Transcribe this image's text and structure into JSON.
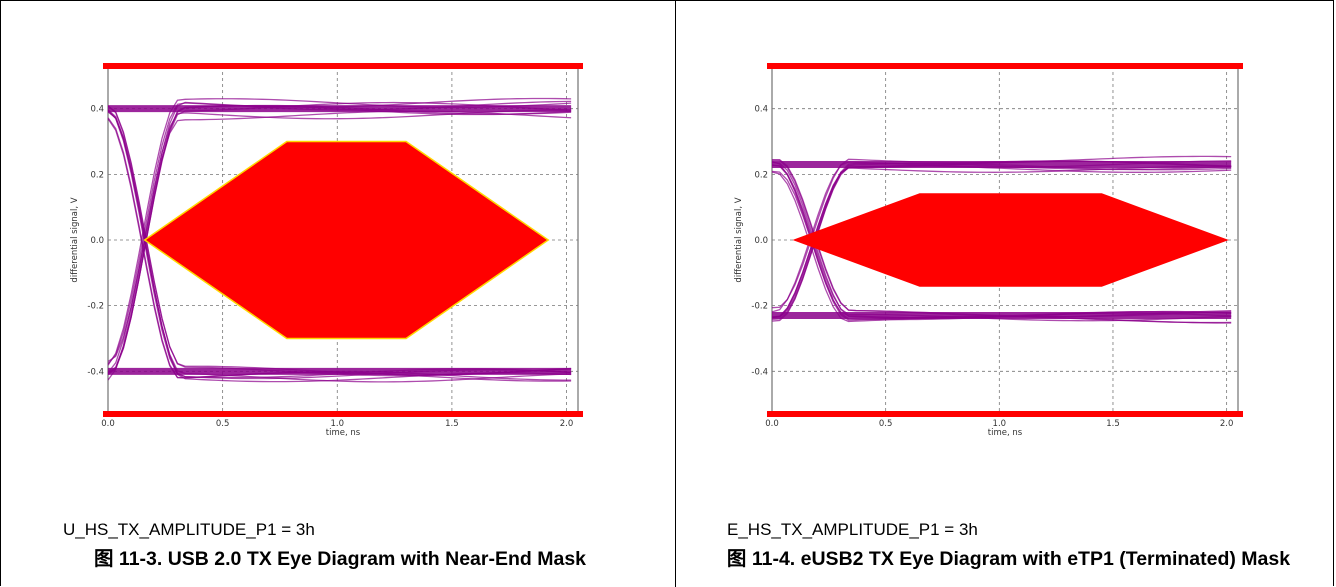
{
  "figures": [
    {
      "setting": "U_HS_TX_AMPLITUDE_P1 = 3h",
      "caption_prefix": "图",
      "caption": "11-3. USB 2.0 TX Eye Diagram with Near-End Mask"
    },
    {
      "setting": "E_HS_TX_AMPLITUDE_P1 = 3h",
      "caption_prefix": "图",
      "caption": "11-4. eUSB2 TX Eye Diagram with eTP1 (Terminated) Mask"
    }
  ],
  "chart_data": [
    {
      "type": "line",
      "title": "",
      "xlabel": "time, ns",
      "ylabel": "differential signal, V",
      "xlim": [
        0.0,
        2.05
      ],
      "ylim": [
        -0.53,
        0.53
      ],
      "xticks": [
        "0.0",
        "0.5",
        "1.0",
        "1.5",
        "2.0"
      ],
      "xtick_values": [
        0.0,
        0.5,
        1.0,
        1.5,
        2.0
      ],
      "yticks": [
        "0.4",
        "0.2",
        "0.0",
        "-0.2",
        "-0.4"
      ],
      "ytick_values": [
        0.4,
        0.2,
        0.0,
        -0.2,
        -0.4
      ],
      "grid": true,
      "colors": {
        "trace": "#8b008b",
        "mask": "#ff0000",
        "mask_edge": "#ffd700"
      },
      "mask": {
        "points": [
          [
            0.16,
            0.0
          ],
          [
            0.78,
            0.3
          ],
          [
            1.3,
            0.3
          ],
          [
            1.92,
            0.0
          ],
          [
            1.3,
            -0.3
          ],
          [
            0.78,
            -0.3
          ]
        ],
        "upper_limit": 0.53,
        "lower_limit": -0.53
      },
      "eye": {
        "amplitude": 0.4,
        "bit_period": 2.0,
        "first_crossing": 0.0,
        "second_crossing": 2.0,
        "thickness": 0.022
      }
    },
    {
      "type": "line",
      "title": "",
      "xlabel": "time, ns",
      "ylabel": "differential signal, V",
      "xlim": [
        0.0,
        2.05
      ],
      "ylim": [
        -0.53,
        0.53
      ],
      "xticks": [
        "0.0",
        "0.5",
        "1.0",
        "1.5",
        "2.0"
      ],
      "xtick_values": [
        0.0,
        0.5,
        1.0,
        1.5,
        2.0
      ],
      "yticks": [
        "0.4",
        "0.2",
        "0.0",
        "-0.2",
        "-0.4"
      ],
      "ytick_values": [
        0.4,
        0.2,
        0.0,
        -0.2,
        -0.4
      ],
      "grid": true,
      "colors": {
        "trace": "#8b008b",
        "mask": "#ff0000",
        "mask_edge": "#ff0000"
      },
      "mask": {
        "points": [
          [
            0.1,
            0.0
          ],
          [
            0.65,
            0.14
          ],
          [
            1.45,
            0.14
          ],
          [
            2.0,
            0.0
          ],
          [
            1.45,
            -0.14
          ],
          [
            0.65,
            -0.14
          ]
        ],
        "upper_limit": 0.53,
        "lower_limit": -0.53
      },
      "eye": {
        "amplitude": 0.23,
        "bit_period": 2.0,
        "first_crossing": 0.02,
        "second_crossing": 2.0,
        "thickness": 0.016
      }
    }
  ]
}
